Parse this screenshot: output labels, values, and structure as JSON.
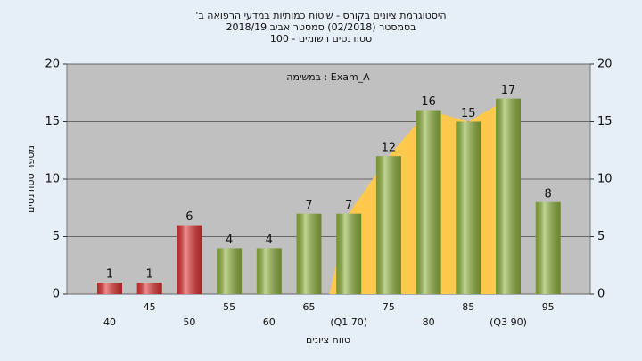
{
  "chart_data": {
    "type": "bar",
    "title_lines": [
      "היסטוגרמת ציונים בקורס - שיטות כמותיות במדעי הרפואה ב'",
      "בסמסטר (02/2018) סמסטר אביב 2018/19",
      "סטודנטים רשומים - 100"
    ],
    "annotation": "במשימה : Exam_A",
    "ylabel": "מספר סטודנטים",
    "xlabel": "טווח ציונים",
    "categories": [
      "40",
      "45",
      "50",
      "55",
      "60",
      "65",
      "(Q1 70)",
      "75",
      "80",
      "85",
      "(Q3 90)",
      "95"
    ],
    "values": [
      1,
      1,
      6,
      4,
      4,
      7,
      7,
      12,
      16,
      15,
      17,
      8
    ],
    "colors": [
      "#e03030",
      "#e03030",
      "#e03030",
      "#8fb33c",
      "#8fb33c",
      "#8fb33c",
      "#8fb33c",
      "#8fb33c",
      "#8fb33c",
      "#8fb33c",
      "#8fb33c",
      "#8fb33c"
    ],
    "area": {
      "color": "#ffc94d",
      "from": 6,
      "to": 10
    },
    "ylim": [
      0,
      20
    ],
    "yticks": [
      0,
      5,
      10,
      15,
      20
    ],
    "y2lim": [
      0,
      20
    ],
    "y2ticks": [
      0,
      5,
      10,
      15,
      20
    ],
    "grid": true
  }
}
